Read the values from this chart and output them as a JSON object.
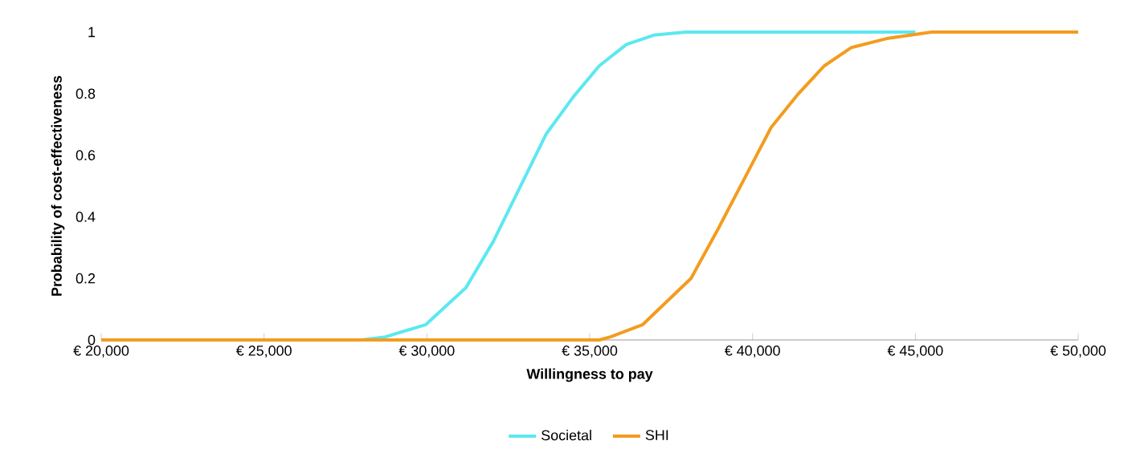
{
  "chart_data": {
    "type": "line",
    "xlabel": "Willingness to pay",
    "ylabel": "Probability of cost-effectiveness",
    "xlim": [
      20000,
      50000
    ],
    "ylim": [
      0,
      1
    ],
    "xticks": [
      {
        "value": 20000,
        "label": "€ 20,000"
      },
      {
        "value": 25000,
        "label": "€ 25,000"
      },
      {
        "value": 30000,
        "label": "€ 30,000"
      },
      {
        "value": 35000,
        "label": "€ 35,000"
      },
      {
        "value": 40000,
        "label": "€ 40,000"
      },
      {
        "value": 45000,
        "label": "€ 45,000"
      },
      {
        "value": 50000,
        "label": "€ 50,000"
      }
    ],
    "yticks": [
      0,
      0.2,
      0.4,
      0.6,
      0.8,
      1
    ],
    "legend": "bottom",
    "grid": false,
    "series": [
      {
        "name": "Societal",
        "color": "#5ce8f0",
        "x": [
          20000,
          28000,
          28730,
          29970,
          31200,
          32040,
          32830,
          33670,
          34500,
          35290,
          36130,
          36970,
          37960,
          45000
        ],
        "values": [
          0,
          0,
          0.01,
          0.05,
          0.17,
          0.32,
          0.49,
          0.67,
          0.79,
          0.89,
          0.96,
          0.99,
          1,
          1
        ]
      },
      {
        "name": "SHI",
        "color": "#f39c1f",
        "x": [
          20000,
          35300,
          35640,
          36630,
          38110,
          38940,
          39730,
          40570,
          41410,
          42200,
          43040,
          44170,
          45500,
          50000
        ],
        "values": [
          0,
          0,
          0.01,
          0.05,
          0.2,
          0.36,
          0.52,
          0.69,
          0.8,
          0.89,
          0.95,
          0.98,
          1,
          1
        ]
      }
    ]
  }
}
